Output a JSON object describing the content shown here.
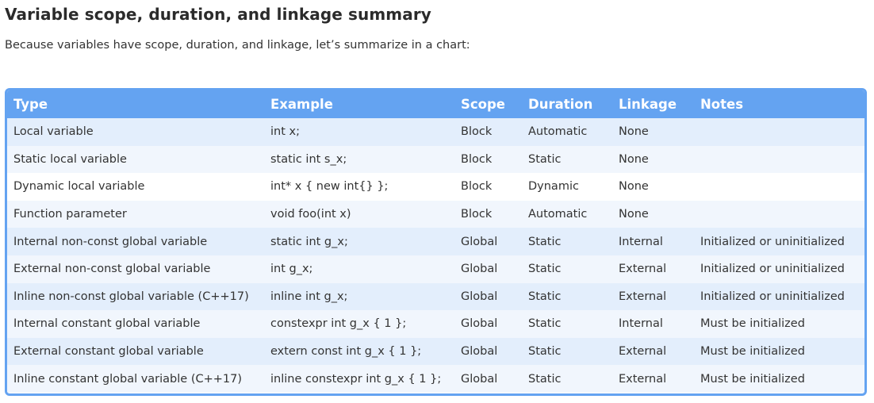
{
  "heading": "Variable scope, duration, and linkage summary",
  "intro": "Because variables have scope, duration, and linkage, let’s summarize in a chart:",
  "colors": {
    "header_bg": "#64a3f1",
    "row_shade": "#e3eefc",
    "row_light": "#f1f6fd"
  },
  "table": {
    "headers": {
      "type": "Type",
      "example": "Example",
      "scope": "Scope",
      "duration": "Duration",
      "linkage": "Linkage",
      "notes": "Notes"
    },
    "rows": [
      {
        "type": "Local variable",
        "example": "int x;",
        "scope": "Block",
        "duration": "Automatic",
        "linkage": "None",
        "notes": ""
      },
      {
        "type": "Static local variable",
        "example": "static int s_x;",
        "scope": "Block",
        "duration": "Static",
        "linkage": "None",
        "notes": ""
      },
      {
        "type": "Dynamic local variable",
        "example": "int* x { new int{} };",
        "scope": "Block",
        "duration": "Dynamic",
        "linkage": "None",
        "notes": ""
      },
      {
        "type": "Function parameter",
        "example": "void foo(int x)",
        "scope": "Block",
        "duration": "Automatic",
        "linkage": "None",
        "notes": ""
      },
      {
        "type": "Internal non-const global variable",
        "example": "static int g_x;",
        "scope": "Global",
        "duration": "Static",
        "linkage": "Internal",
        "notes": "Initialized or uninitialized"
      },
      {
        "type": "External non-const global variable",
        "example": "int g_x;",
        "scope": "Global",
        "duration": "Static",
        "linkage": "External",
        "notes": "Initialized or uninitialized"
      },
      {
        "type": "Inline non-const global variable (C++17)",
        "example": "inline int g_x;",
        "scope": "Global",
        "duration": "Static",
        "linkage": "External",
        "notes": "Initialized or uninitialized"
      },
      {
        "type": "Internal constant global variable",
        "example": "constexpr int g_x { 1 };",
        "scope": "Global",
        "duration": "Static",
        "linkage": "Internal",
        "notes": "Must be initialized"
      },
      {
        "type": "External constant global variable",
        "example": "extern const int g_x { 1 };",
        "scope": "Global",
        "duration": "Static",
        "linkage": "External",
        "notes": "Must be initialized"
      },
      {
        "type": "Inline constant global variable (C++17)",
        "example": "inline constexpr int g_x { 1 };",
        "scope": "Global",
        "duration": "Static",
        "linkage": "External",
        "notes": "Must be initialized"
      }
    ]
  }
}
